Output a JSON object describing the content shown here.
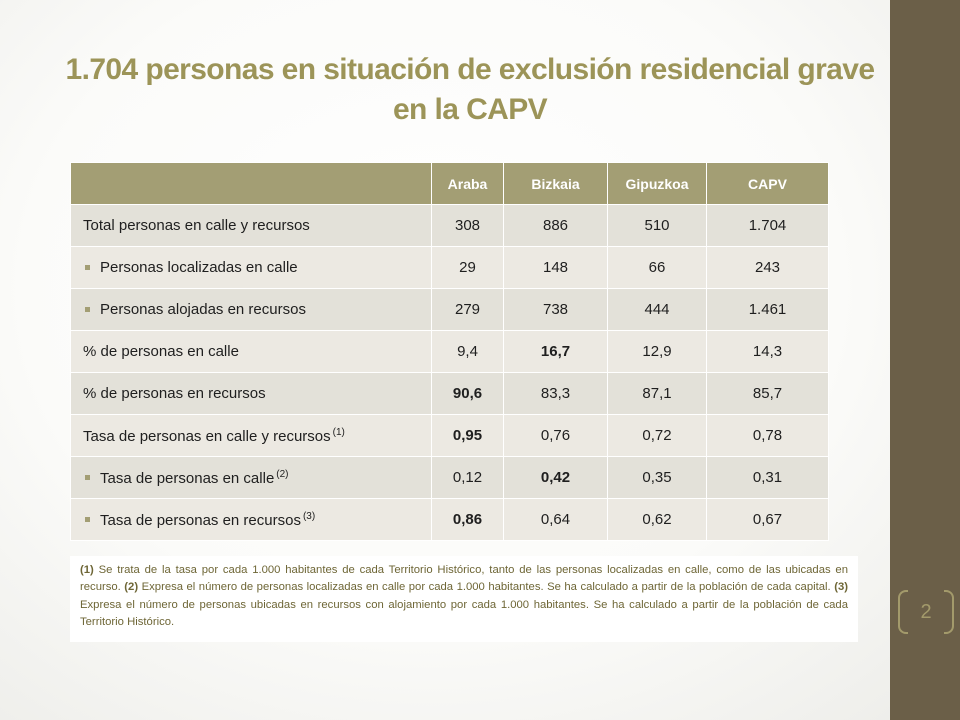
{
  "title": "1.704 personas en situación de exclusión residencial grave en la CAPV",
  "page_number": "2",
  "table": {
    "headers": [
      "",
      "Araba",
      "Bizkaia",
      "Gipuzkoa",
      "CAPV"
    ],
    "rows": [
      {
        "label": "Total personas en calle y recursos",
        "sup": "",
        "bullet": false,
        "values": [
          "308",
          "886",
          "510",
          "1.704"
        ],
        "bold": [
          false,
          false,
          false,
          false
        ]
      },
      {
        "label": "Personas localizadas en calle",
        "sup": "",
        "bullet": true,
        "values": [
          "29",
          "148",
          "66",
          "243"
        ],
        "bold": [
          false,
          false,
          false,
          false
        ]
      },
      {
        "label": "Personas alojadas en recursos",
        "sup": "",
        "bullet": true,
        "values": [
          "279",
          "738",
          "444",
          "1.461"
        ],
        "bold": [
          false,
          false,
          false,
          false
        ]
      },
      {
        "label": "% de personas en calle",
        "sup": "",
        "bullet": false,
        "values": [
          "9,4",
          "16,7",
          "12,9",
          "14,3"
        ],
        "bold": [
          false,
          true,
          false,
          false
        ]
      },
      {
        "label": "% de personas en recursos",
        "sup": "",
        "bullet": false,
        "values": [
          "90,6",
          "83,3",
          "87,1",
          "85,7"
        ],
        "bold": [
          true,
          false,
          false,
          false
        ]
      },
      {
        "label": "Tasa de personas en calle y recursos",
        "sup": "(1)",
        "bullet": false,
        "values": [
          "0,95",
          "0,76",
          "0,72",
          "0,78"
        ],
        "bold": [
          true,
          false,
          false,
          false
        ]
      },
      {
        "label": "Tasa de personas en calle",
        "sup": "(2)",
        "bullet": true,
        "values": [
          "0,12",
          "0,42",
          "0,35",
          "0,31"
        ],
        "bold": [
          false,
          true,
          false,
          false
        ]
      },
      {
        "label": "Tasa de personas en recursos",
        "sup": "(3)",
        "bullet": true,
        "values": [
          "0,86",
          "0,64",
          "0,62",
          "0,67"
        ],
        "bold": [
          true,
          false,
          false,
          false
        ]
      }
    ]
  },
  "notes": [
    {
      "marker": "(1)",
      "text": " Se trata de la tasa por cada 1.000 habitantes de cada Territorio Histórico, tanto de las personas localizadas en calle, como de las ubicadas en recurso. "
    },
    {
      "marker": "(2)",
      "text": " Expresa el número de personas localizadas en calle por cada 1.000 habitantes. Se ha calculado a partir de la población de cada capital. "
    },
    {
      "marker": "(3)",
      "text": " Expresa el número de personas ubicadas en recursos con alojamiento por cada 1.000 habitantes. Se ha calculado a partir de la población de cada Territorio Histórico."
    }
  ]
}
